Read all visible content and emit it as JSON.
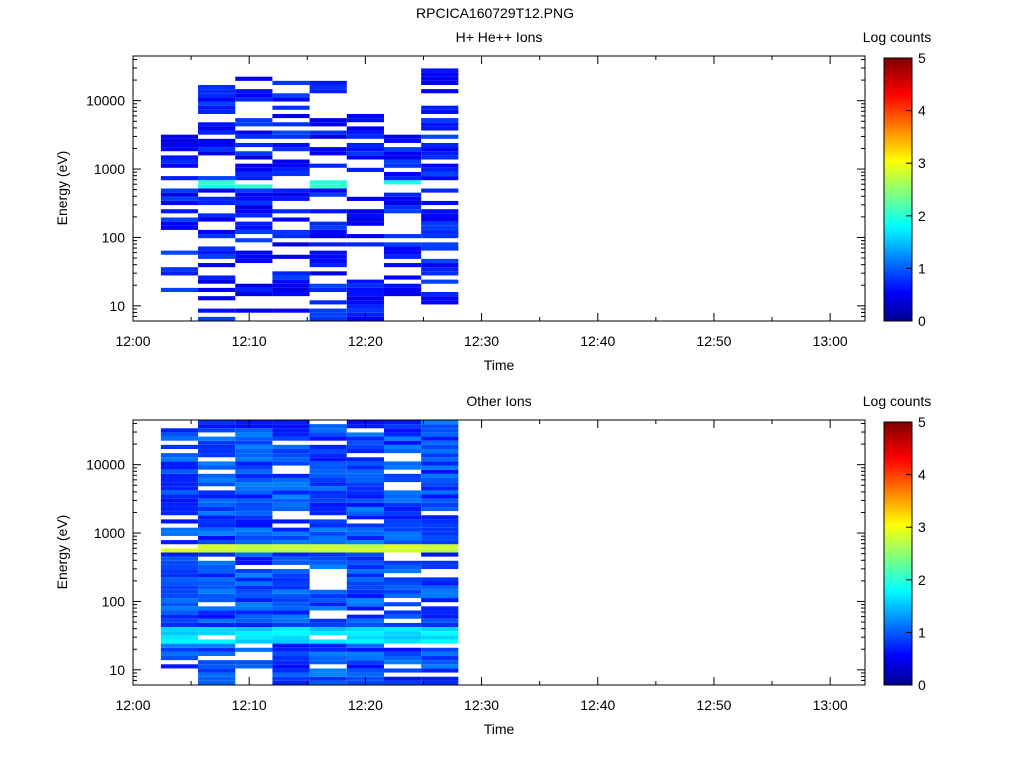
{
  "main_title": "RPCICA160729T12.PNG",
  "chart_data": [
    {
      "type": "heatmap",
      "title": "H+ He++ Ions",
      "xlabel": "Time",
      "ylabel": "Energy (eV)",
      "x_ticks": [
        "12:00",
        "12:10",
        "12:20",
        "12:30",
        "12:40",
        "12:50",
        "13:00"
      ],
      "y_ticks": [
        "10",
        "100",
        "1000",
        "10000"
      ],
      "y_scale": "log",
      "ylim": [
        6,
        45000
      ],
      "xlim": [
        "12:00",
        "13:03"
      ],
      "colorbar": {
        "label": "Log counts",
        "range": [
          0,
          5
        ],
        "ticks": [
          "0",
          "1",
          "2",
          "3",
          "4",
          "5"
        ]
      },
      "time_bins": [
        "12:02:24",
        "12:05:36",
        "12:08:48",
        "12:12:00",
        "12:15:12",
        "12:18:24",
        "12:21:36",
        "12:24:48"
      ],
      "energy_range_per_bin_eV": [
        [
          15,
          3000
        ],
        [
          6,
          16000
        ],
        [
          8,
          20000
        ],
        [
          8,
          20000
        ],
        [
          6,
          17000
        ],
        [
          6,
          6000
        ],
        [
          15,
          3000
        ],
        [
          11,
          31000
        ]
      ],
      "peak_energy_eV": 600,
      "peak_log_counts": 2.1,
      "typical_log_counts": 0.4
    },
    {
      "type": "heatmap",
      "title": "Other Ions",
      "xlabel": "Time",
      "ylabel": "Energy (eV)",
      "x_ticks": [
        "12:00",
        "12:10",
        "12:20",
        "12:30",
        "12:40",
        "12:50",
        "13:00"
      ],
      "y_ticks": [
        "10",
        "100",
        "1000",
        "10000"
      ],
      "y_scale": "log",
      "ylim": [
        6,
        45000
      ],
      "xlim": [
        "12:00",
        "13:03"
      ],
      "colorbar": {
        "label": "Log counts",
        "range": [
          0,
          5
        ],
        "ticks": [
          "0",
          "1",
          "2",
          "3",
          "4",
          "5"
        ]
      },
      "time_bins": [
        "12:02:24",
        "12:05:36",
        "12:08:48",
        "12:12:00",
        "12:15:12",
        "12:18:24",
        "12:21:36",
        "12:24:48"
      ],
      "energy_range_per_bin_eV": [
        [
          11,
          45000
        ],
        [
          6,
          45000
        ],
        [
          11,
          45000
        ],
        [
          6,
          45000
        ],
        [
          6,
          45000
        ],
        [
          6,
          45000
        ],
        [
          6,
          45000
        ],
        [
          6,
          45000
        ]
      ],
      "peak_energy_eV": 620,
      "peak_log_counts": 2.9,
      "secondary_peak_energy_eV": 32,
      "secondary_peak_log_counts": 1.8,
      "typical_log_counts": 0.6
    }
  ]
}
